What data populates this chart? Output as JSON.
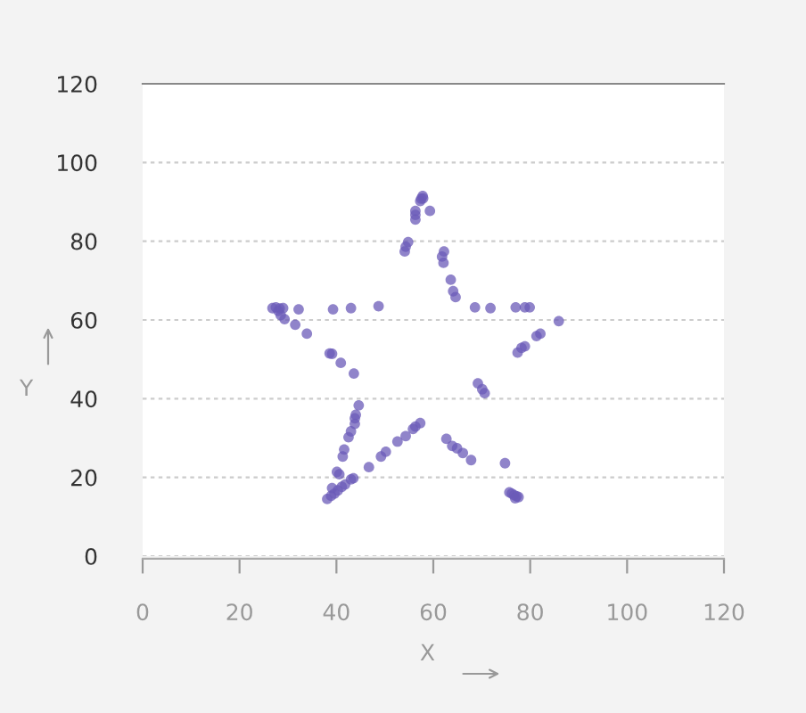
{
  "chart_data": {
    "type": "scatter",
    "xlabel": "X",
    "ylabel": "Y",
    "xlim": [
      0,
      120
    ],
    "ylim": [
      0,
      120
    ],
    "xticks": [
      0,
      20,
      40,
      60,
      80,
      100,
      120
    ],
    "yticks": [
      0,
      20,
      40,
      60,
      80,
      100,
      120
    ],
    "grid": "y",
    "marker": "circle",
    "series": [
      {
        "color": "#6b5bb8",
        "x": [
          57.8,
          57.5,
          57.3,
          57.9,
          59.3,
          56.3,
          56.3,
          56.3,
          54.8,
          54.3,
          54.1,
          62.2,
          61.8,
          62.1,
          63.6,
          64.1,
          64.6,
          68.6,
          71.8,
          77.0,
          78.9,
          79.9,
          85.9,
          82.1,
          81.3,
          78.9,
          78.2,
          77.4,
          69.2,
          70.1,
          70.6,
          62.7,
          63.9,
          64.9,
          66.1,
          67.8,
          74.8,
          75.7,
          76.2,
          76.7,
          77.2,
          77.6,
          76.9,
          57.3,
          56.3,
          55.8,
          54.3,
          52.6,
          50.2,
          49.2,
          46.7,
          43.5,
          38.1,
          38.9,
          39.6,
          40.3,
          41.1,
          41.8,
          43.0,
          39.1,
          40.1,
          40.6,
          41.3,
          41.6,
          42.5,
          43.0,
          43.8,
          43.8,
          44.0,
          44.6,
          43.6,
          40.9,
          39.1,
          38.6,
          33.9,
          31.5,
          29.3,
          28.5,
          26.8,
          27.5,
          28.3,
          29.0,
          28.0,
          32.2,
          39.3,
          43.0,
          48.7
        ],
        "values": [
          91.5,
          90.8,
          90.2,
          90.9,
          87.7,
          87.7,
          86.7,
          85.5,
          79.8,
          78.6,
          77.4,
          77.4,
          76.1,
          74.5,
          70.2,
          67.3,
          65.8,
          63.2,
          63.0,
          63.2,
          63.2,
          63.2,
          59.7,
          56.5,
          55.9,
          53.3,
          52.9,
          51.7,
          43.9,
          42.4,
          41.4,
          29.8,
          28.0,
          27.4,
          26.2,
          24.4,
          23.6,
          16.2,
          15.9,
          15.5,
          15.2,
          15.0,
          14.7,
          33.8,
          32.9,
          32.3,
          30.5,
          29.1,
          26.5,
          25.3,
          22.6,
          19.8,
          14.5,
          15.3,
          15.9,
          16.7,
          17.6,
          18.2,
          19.5,
          17.3,
          21.4,
          20.8,
          25.3,
          27.1,
          30.2,
          31.7,
          33.6,
          35.0,
          35.9,
          38.3,
          46.4,
          49.1,
          51.4,
          51.5,
          56.5,
          58.8,
          60.2,
          61.2,
          63.0,
          63.2,
          62.9,
          63.0,
          62.3,
          62.7,
          62.7,
          63.0,
          63.5
        ]
      }
    ]
  }
}
